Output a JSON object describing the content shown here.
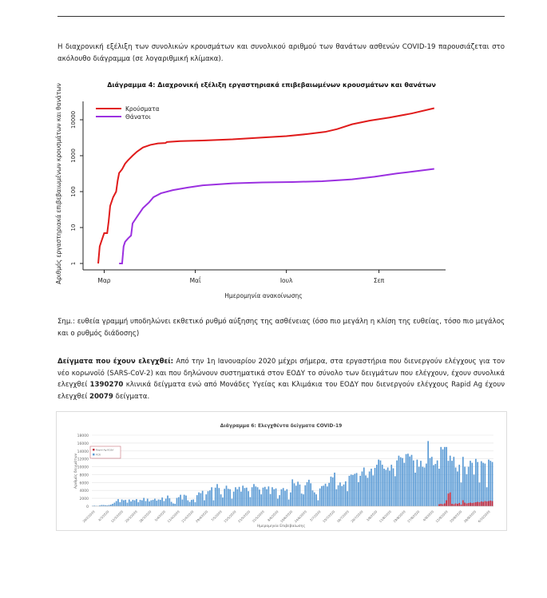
{
  "intro": "Η διαχρονική εξέλιξη των συνολικών κρουσμάτων και συνολικού αριθμού των θανάτων ασθενών COVID-19 παρουσιάζεται στο ακόλουθο διάγραμμα (σε λογαριθμική κλίμακα).",
  "note": "Σημ.: ευθεία γραμμή υποδηλώνει εκθετικό ρυθμό αύξησης της ασθένειας (όσο πιο μεγάλη η κλίση της ευθείας, τόσο πιο μεγάλος και ο ρυθμός διάδοσης)",
  "samples": {
    "heading": "Δείγματα που έχουν ελεγχθεί:",
    "text1": " Από την 1η Ιανουαρίου 2020 μέχρι σήμερα, στα εργαστήρια που διενεργούν ελέγχους για τον νέο κορωνοϊό (SARS-CoV-2) και που δηλώνουν συστηματικά στον ΕΟΔΥ το σύνολο των δειγμάτων που ελέγχουν, έχουν συνολικά ελεγχθεί ",
    "pcr_total": "1390270",
    "text2": " κλινικά δείγματα ενώ από Μονάδες Υγείας και Κλιμάκια του ΕΟΔΥ που διενεργούν ελέγχους Rapid Ag έχουν ελεγχθεί ",
    "rapid_total": "20079",
    "text3": " δείγματα."
  },
  "chart_data": [
    {
      "type": "line",
      "title": "Διάγραμμα 4: Διαχρονική εξέλιξη εργαστηριακά επιβεβαιωμένων κρουσμάτων και θανάτων",
      "xlabel": "Ημερομηνία ανακοίνωσης",
      "ylabel": "Αριθμός εργαστηριακά επιβεβαιωμένων κρουσμάτων και θανάτων",
      "yscale": "log",
      "ylim": [
        0.8,
        30000
      ],
      "yticks": [
        "1",
        "10",
        "100",
        "1000",
        "10000"
      ],
      "x_unit": "days since 26/2/2020",
      "xticks": [
        {
          "label": "Μαρ",
          "day": 4
        },
        {
          "label": "Μαΐ",
          "day": 65
        },
        {
          "label": "Ιουλ",
          "day": 126
        },
        {
          "label": "Σεπ",
          "day": 188
        }
      ],
      "legend_position": "top-left",
      "series": [
        {
          "name": "Κρούσματα",
          "color": "#e01b1b",
          "points": [
            [
              0,
              1
            ],
            [
              1,
              3
            ],
            [
              2,
              4
            ],
            [
              4,
              7
            ],
            [
              6,
              7
            ],
            [
              7,
              15
            ],
            [
              8,
              40
            ],
            [
              10,
              70
            ],
            [
              12,
              100
            ],
            [
              13,
              200
            ],
            [
              14,
              330
            ],
            [
              16,
              420
            ],
            [
              18,
              600
            ],
            [
              20,
              750
            ],
            [
              23,
              1000
            ],
            [
              26,
              1300
            ],
            [
              30,
              1700
            ],
            [
              35,
              2000
            ],
            [
              40,
              2200
            ],
            [
              45,
              2250
            ],
            [
              46,
              2400
            ],
            [
              55,
              2550
            ],
            [
              70,
              2650
            ],
            [
              90,
              2850
            ],
            [
              110,
              3200
            ],
            [
              126,
              3500
            ],
            [
              140,
              4000
            ],
            [
              152,
              4600
            ],
            [
              160,
              5500
            ],
            [
              170,
              7500
            ],
            [
              182,
              9500
            ],
            [
              195,
              11500
            ],
            [
              210,
              15000
            ],
            [
              225,
              21000
            ]
          ]
        },
        {
          "name": "Θάνατοι",
          "color": "#9b30e0",
          "points": [
            [
              14,
              1
            ],
            [
              16,
              1
            ],
            [
              17,
              3
            ],
            [
              18,
              4
            ],
            [
              20,
              5
            ],
            [
              22,
              6
            ],
            [
              23,
              13
            ],
            [
              26,
              20
            ],
            [
              30,
              35
            ],
            [
              34,
              50
            ],
            [
              37,
              70
            ],
            [
              42,
              90
            ],
            [
              50,
              110
            ],
            [
              60,
              130
            ],
            [
              70,
              150
            ],
            [
              90,
              170
            ],
            [
              110,
              180
            ],
            [
              130,
              185
            ],
            [
              150,
              195
            ],
            [
              170,
              220
            ],
            [
              185,
              260
            ],
            [
              200,
              320
            ],
            [
              215,
              380
            ],
            [
              225,
              430
            ]
          ]
        }
      ]
    },
    {
      "type": "bar",
      "title": "Διάγραμμα 6: Ελεγχθέντα δείγματα COVID-19",
      "xlabel": "Ημερομηνία Επιβεβαίωσης",
      "ylabel": "Αριθμός δειγμάτων",
      "ylim": [
        0,
        18000
      ],
      "yticks": [
        "0",
        "2000",
        "4000",
        "6000",
        "8000",
        "10000",
        "12000",
        "14000",
        "16000",
        "18000"
      ],
      "legend_position": "top-left",
      "xtick_labels": [
        "26/2/2020",
        "4/3/2020",
        "12/3/2020",
        "20/3/2020",
        "28/3/2020",
        "5/4/2020",
        "13/4/2020",
        "21/4/2020",
        "29/4/2020",
        "7/5/2020",
        "15/5/2020",
        "23/5/2020",
        "31/5/2020",
        "8/6/2020",
        "16/6/2020",
        "24/6/2020",
        "2/7/2020",
        "10/7/2020",
        "18/7/2020",
        "26/7/2020",
        "3/8/2020",
        "11/8/2020",
        "19/8/2020",
        "27/8/2020",
        "4/9/2020",
        "12/9/2020",
        "20/9/2020",
        "28/9/2020",
        "6/10/2020"
      ],
      "series": [
        {
          "name": "Rapid Ag ΕΟΔΥ",
          "color": "#c0283c",
          "values_tail": [
            500,
            600,
            500,
            700,
            1500,
            3200,
            3500,
            600,
            500,
            700,
            600,
            800,
            400,
            1500,
            900,
            700,
            800,
            900,
            800,
            900,
            1000,
            1100,
            1000,
            1200,
            1100,
            1300,
            1200,
            1300,
            1400,
            1300
          ]
        },
        {
          "name": "PCR",
          "color": "#5b9bd5",
          "values": [
            100,
            150,
            100,
            50,
            200,
            300,
            300,
            250,
            200,
            300,
            400,
            600,
            900,
            1300,
            1800,
            1000,
            1700,
            1500,
            1600,
            900,
            1700,
            1200,
            1600,
            1500,
            1800,
            1000,
            1600,
            1500,
            2100,
            1300,
            1900,
            1200,
            1500,
            1600,
            1900,
            1400,
            1700,
            1600,
            2200,
            1300,
            1900,
            2700,
            2000,
            1100,
            700,
            600,
            2100,
            2300,
            2900,
            1700,
            2900,
            2700,
            1500,
            1100,
            1600,
            1700,
            1000,
            2800,
            3500,
            3300,
            3900,
            1500,
            3000,
            3800,
            4000,
            4800,
            1500,
            4700,
            5600,
            4600,
            3000,
            2200,
            4400,
            5200,
            4400,
            4300,
            1900,
            3700,
            4800,
            4300,
            4900,
            3700,
            5200,
            4600,
            4700,
            3800,
            2300,
            4800,
            5600,
            5000,
            4800,
            4200,
            3000,
            4700,
            4900,
            4300,
            5000,
            3100,
            4800,
            4300,
            4500,
            1900,
            2800,
            4300,
            4600,
            3900,
            4300,
            1700,
            3500,
            6800,
            5800,
            5200,
            6200,
            5500,
            3200,
            3000,
            5300,
            6100,
            6700,
            5800,
            4000,
            3500,
            3000,
            1500,
            4500,
            5100,
            5200,
            5700,
            5000,
            5900,
            7500,
            7300,
            8500,
            4300,
            5300,
            6000,
            5100,
            5500,
            6300,
            3800,
            7700,
            8000,
            7900,
            8200,
            8400,
            6100,
            7700,
            8800,
            9800,
            7800,
            7200,
            8800,
            9500,
            7800,
            9700,
            10500,
            11800,
            11600,
            10500,
            9500,
            9200,
            9800,
            9000,
            10500,
            9600,
            7600,
            11600,
            12800,
            12400,
            12200,
            11000,
            13200,
            13300,
            12600,
            13000,
            11600,
            8500,
            11800,
            10000,
            11500,
            10000,
            9800,
            10800,
            16500,
            12200,
            12500,
            10400,
            10700,
            11600,
            9500,
            15000,
            14400,
            15000,
            15000,
            11500,
            12800,
            11500,
            12500,
            9800,
            8800,
            10500,
            6000,
            12500,
            10000,
            8100,
            10000,
            11500,
            11000,
            8000,
            12000,
            11200,
            6000,
            11400,
            11000,
            10800,
            4800,
            11800,
            11500,
            11200
          ]
        }
      ]
    }
  ]
}
